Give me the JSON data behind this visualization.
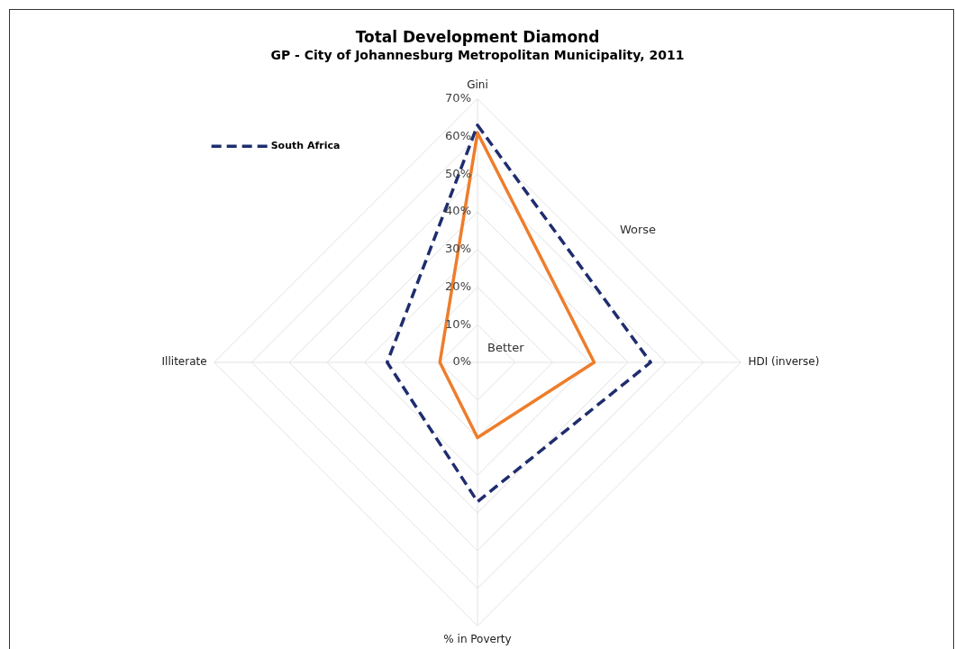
{
  "chart_data": {
    "type": "radar",
    "title": "Total Development Diamond",
    "subtitle": "GP - City of Johannesburg Metropolitan Municipality, 2011",
    "categories": [
      "Gini",
      "HDI (inverse)",
      "% in Poverty",
      "Illiterate"
    ],
    "series": [
      {
        "name": "South Africa",
        "color": "#1f2d6e",
        "line_style": "dashed",
        "values": [
          63,
          46,
          37,
          24
        ]
      },
      {
        "color": "#ee7d2b",
        "values": [
          61,
          31,
          20,
          10
        ]
      }
    ],
    "ylim": [
      0,
      70
    ],
    "yticks": [
      {
        "value": 0,
        "label": "0%"
      },
      {
        "value": 10,
        "label": "10%"
      },
      {
        "value": 20,
        "label": "20%"
      },
      {
        "value": 30,
        "label": "30%"
      },
      {
        "value": 40,
        "label": "40%"
      },
      {
        "value": 50,
        "label": "50%"
      },
      {
        "value": 60,
        "label": "60%"
      },
      {
        "value": 70,
        "label": "70%"
      }
    ],
    "grid": true,
    "legend": "top left",
    "annotations": [
      "Worse",
      "Better"
    ]
  }
}
